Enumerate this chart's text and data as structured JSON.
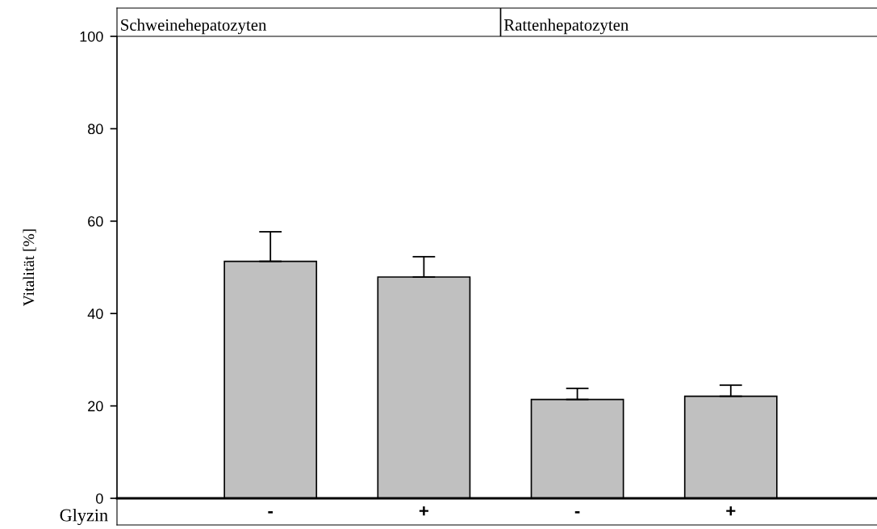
{
  "chart_data": {
    "type": "bar",
    "ylabel": "Vitalität [%]",
    "xlabel": "Glyzin",
    "categories": [
      "-",
      "+",
      "-",
      "+"
    ],
    "values": [
      51.3,
      47.9,
      21.4,
      22.1
    ],
    "errors": [
      [
        51.3,
        57.7
      ],
      [
        47.9,
        52.3
      ],
      [
        21.4,
        23.8
      ],
      [
        22.1,
        24.5
      ]
    ],
    "color": "#c0c0c0",
    "ylim": [
      0,
      100
    ],
    "yticks": [
      0,
      20,
      40,
      60,
      80,
      100
    ],
    "grid": false,
    "annotations": [
      "Schweinehepatozyten",
      "Rattenhepatozyten"
    ]
  }
}
